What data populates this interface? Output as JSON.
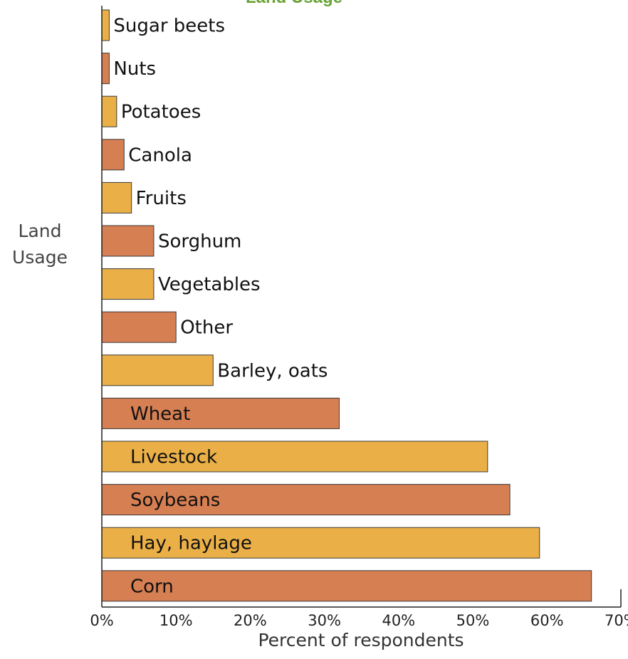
{
  "colors": {
    "orange": "#d67f52",
    "gold": "#eab047",
    "title": "#6aa337",
    "bar_stroke": "#3a3a3a",
    "axis": "#222222"
  },
  "chart_data": {
    "type": "bar",
    "orientation": "horizontal",
    "title": "Land Usage",
    "xlabel": "Percent of respondents",
    "ylabel_lines": [
      "Land",
      "Usage"
    ],
    "xlim": [
      0,
      70
    ],
    "xticks": [
      "0%",
      "10%",
      "20%",
      "30%",
      "40%",
      "50%",
      "60%",
      "70%"
    ],
    "grid": false,
    "categories": [
      "Sugar beets",
      "Nuts",
      "Potatoes",
      "Canola",
      "Fruits",
      "Sorghum",
      "Vegetables",
      "Other",
      "Barley, oats",
      "Wheat",
      "Livestock",
      "Soybeans",
      "Hay, haylage",
      "Corn"
    ],
    "values": [
      1,
      1,
      2,
      3,
      4,
      7,
      7,
      10,
      15,
      32,
      52,
      55,
      59,
      66
    ],
    "bar_colors": [
      "gold",
      "orange",
      "gold",
      "orange",
      "gold",
      "orange",
      "gold",
      "orange",
      "gold",
      "orange",
      "gold",
      "orange",
      "gold",
      "orange"
    ]
  }
}
